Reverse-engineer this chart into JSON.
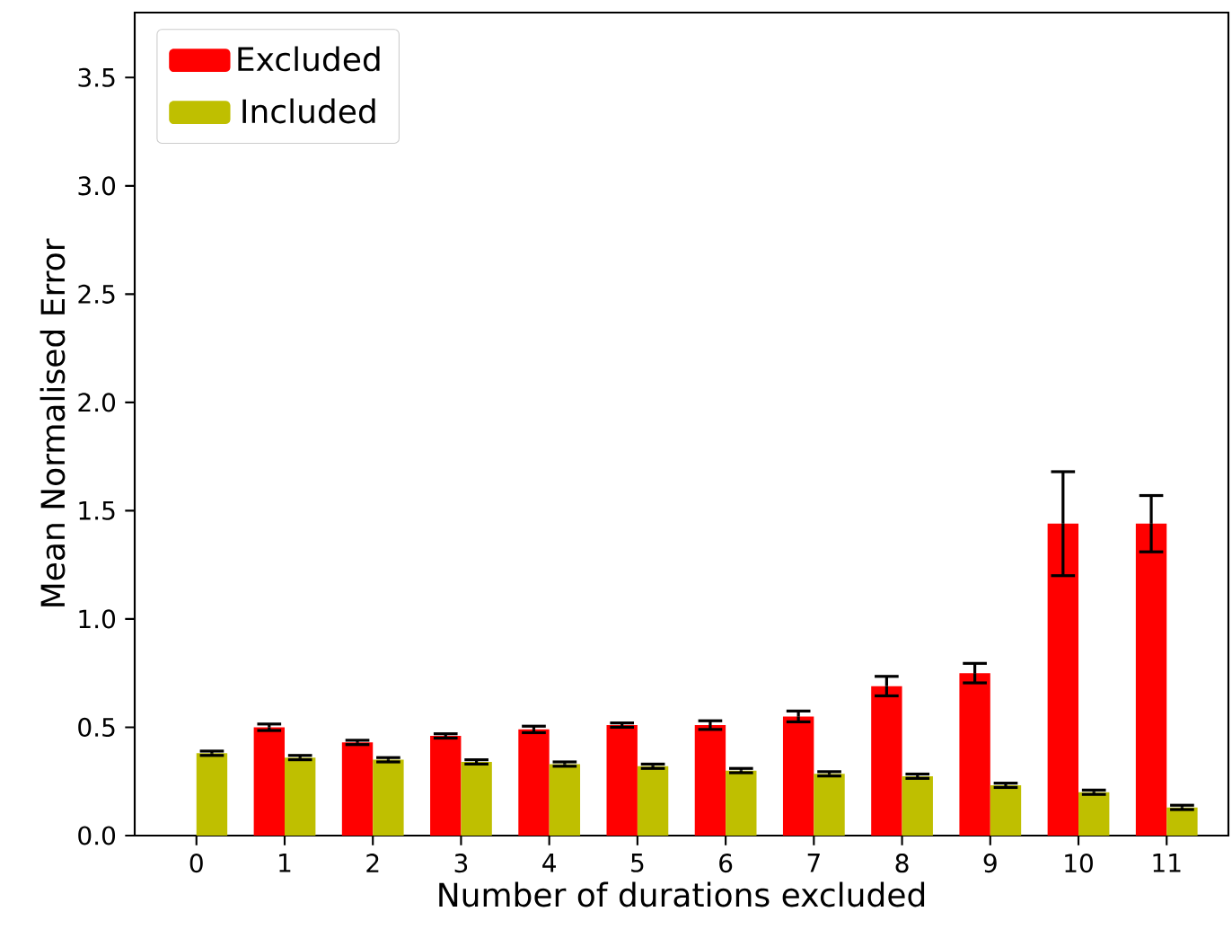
{
  "chart_data": {
    "type": "bar",
    "xlabel": "Number of durations excluded",
    "ylabel": "Mean Normalised Error",
    "categories": [
      "0",
      "1",
      "2",
      "3",
      "4",
      "5",
      "6",
      "7",
      "8",
      "9",
      "10",
      "11"
    ],
    "series": [
      {
        "name": "Excluded",
        "color": "#ff0000",
        "values": [
          null,
          0.5,
          0.43,
          0.46,
          0.49,
          0.51,
          0.51,
          0.55,
          0.69,
          0.75,
          1.44,
          1.44
        ],
        "errors": [
          null,
          0.015,
          0.01,
          0.01,
          0.015,
          0.01,
          0.02,
          0.025,
          0.045,
          0.045,
          0.24,
          0.13
        ]
      },
      {
        "name": "Included",
        "color": "#bfbf00",
        "values": [
          0.38,
          0.36,
          0.35,
          0.34,
          0.33,
          0.32,
          0.3,
          0.285,
          0.274,
          0.232,
          0.2,
          0.13
        ],
        "errors": [
          0.01,
          0.01,
          0.01,
          0.01,
          0.01,
          0.01,
          0.01,
          0.01,
          0.01,
          0.01,
          0.01,
          0.01
        ]
      }
    ],
    "ylim": [
      0,
      3.8
    ],
    "yticks": [
      {
        "value": 0,
        "label": "0.0"
      },
      {
        "value": 0.5,
        "label": "0.5"
      },
      {
        "value": 1.0,
        "label": "1.0"
      },
      {
        "value": 1.5,
        "label": "1.5"
      },
      {
        "value": 2.0,
        "label": "2.0"
      },
      {
        "value": 2.5,
        "label": "2.5"
      },
      {
        "value": 3.0,
        "label": "3.0"
      },
      {
        "value": 3.5,
        "label": "3.5"
      }
    ],
    "legend": "top left",
    "grid": false
  }
}
